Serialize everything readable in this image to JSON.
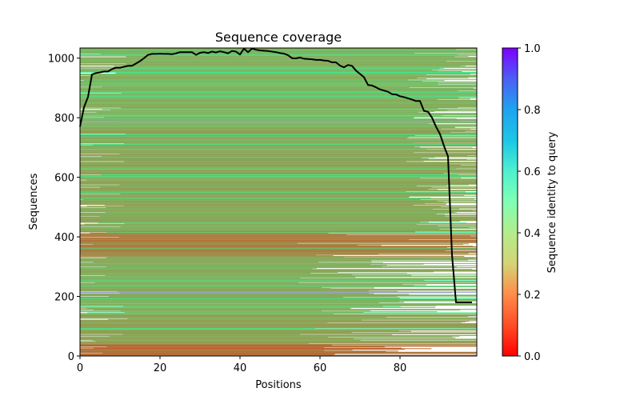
{
  "chart_data": {
    "type": "heatmap",
    "title": "Sequence coverage",
    "xlabel": "Positions",
    "ylabel": "Sequences",
    "xlim": [
      0,
      99.2
    ],
    "ylim": [
      0,
      1034
    ],
    "xticks": [
      0,
      20,
      40,
      60,
      80
    ],
    "yticks": [
      0,
      200,
      400,
      600,
      800,
      1000
    ],
    "grid": false,
    "colormap": "rainbow_r",
    "colorbar": {
      "label": "Sequence identity to query",
      "range": [
        0.0,
        1.0
      ],
      "ticks": [
        0.0,
        0.2,
        0.4,
        0.6,
        0.8,
        1.0
      ],
      "tick_labels": [
        "0.0",
        "0.2",
        "0.4",
        "0.6",
        "0.8",
        "1.0"
      ],
      "placement": "right"
    },
    "heatmap_summary": {
      "n_sequences": 1034,
      "n_positions": 99,
      "dominant_identity": 0.22,
      "identity_bands": [
        {
          "rows": [
            0,
            40
          ],
          "identity": 0.14
        },
        {
          "rows": [
            40,
            140
          ],
          "identity": 0.22
        },
        {
          "rows": [
            140,
            330
          ],
          "identity": 0.24
        },
        {
          "rows": [
            330,
            420
          ],
          "identity": 0.17
        },
        {
          "rows": [
            420,
            760
          ],
          "identity": 0.23
        },
        {
          "rows": [
            760,
            1034
          ],
          "identity": 0.25
        }
      ],
      "highlight_rows": [
        {
          "row": 215,
          "identity": 0.78
        },
        {
          "row": 788,
          "identity": 0.78
        }
      ]
    },
    "coverage_line": {
      "name": "coverage",
      "color": "#000000",
      "x": [
        0,
        1,
        2,
        3,
        4,
        5,
        6,
        7,
        8,
        9,
        10,
        11,
        12,
        13,
        14,
        15,
        16,
        17,
        18,
        19,
        20,
        21,
        22,
        23,
        24,
        25,
        26,
        27,
        28,
        29,
        30,
        31,
        32,
        33,
        34,
        35,
        36,
        37,
        38,
        39,
        40,
        41,
        42,
        43,
        44,
        45,
        46,
        47,
        48,
        49,
        50,
        51,
        52,
        53,
        54,
        55,
        56,
        57,
        58,
        59,
        60,
        61,
        62,
        63,
        64,
        65,
        66,
        67,
        68,
        69,
        70,
        71,
        72,
        73,
        74,
        75,
        76,
        77,
        78,
        79,
        80,
        81,
        82,
        83,
        84,
        85,
        86,
        87,
        88,
        89,
        90,
        91,
        92,
        93,
        94,
        95,
        96,
        97,
        98
      ],
      "y": [
        770,
        835,
        870,
        945,
        950,
        952,
        955,
        955,
        963,
        968,
        968,
        971,
        974,
        974,
        982,
        990,
        1000,
        1011,
        1014,
        1014,
        1015,
        1014,
        1014,
        1013,
        1016,
        1020,
        1020,
        1020,
        1020,
        1011,
        1018,
        1020,
        1017,
        1022,
        1019,
        1023,
        1020,
        1016,
        1024,
        1022,
        1012,
        1032,
        1020,
        1032,
        1028,
        1026,
        1025,
        1024,
        1022,
        1020,
        1017,
        1015,
        1010,
        1000,
        999,
        1002,
        998,
        997,
        996,
        994,
        994,
        992,
        991,
        986,
        986,
        975,
        969,
        977,
        974,
        958,
        947,
        936,
        910,
        908,
        902,
        895,
        891,
        887,
        879,
        878,
        872,
        869,
        865,
        861,
        856,
        856,
        823,
        820,
        800,
        770,
        745,
        705,
        670,
        340,
        180,
        180,
        180,
        180,
        180
      ]
    }
  }
}
